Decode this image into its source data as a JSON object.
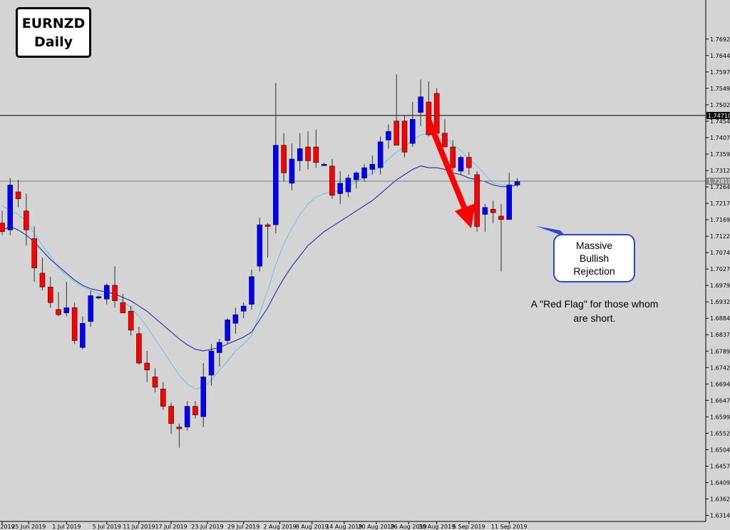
{
  "title_box": {
    "line1": "EURNZD",
    "line2": "Daily"
  },
  "callout": {
    "line1": "Massive",
    "line2": "Bullish",
    "line3": "Rejection"
  },
  "note": {
    "line1": "A \"Red Flag\" for those whom",
    "line2": "are short."
  },
  "colors": {
    "background": "#d4d4d4",
    "bull": "#0000ff",
    "bear": "#ff0000",
    "ma_fast": "#63c6e6",
    "ma_slow": "#1a1aa8",
    "arrow": "#ff0000",
    "callout_border": "#2a47d8"
  },
  "chart_data": {
    "type": "candlestick",
    "symbol": "EURNZD",
    "timeframe": "Daily",
    "ylim": [
      1.6297,
      1.7805
    ],
    "y_ticks": [
      "1.76920",
      "1.76445",
      "1.75970",
      "1.75495",
      "1.75020",
      "1.74545",
      "1.74070",
      "1.73595",
      "1.73120",
      "1.72645",
      "1.72170",
      "1.71695",
      "1.71220",
      "1.70745",
      "1.70270",
      "1.69795",
      "1.69320",
      "1.68845",
      "1.68370",
      "1.67895",
      "1.67420",
      "1.66945",
      "1.66470",
      "1.65995",
      "1.65520",
      "1.65045",
      "1.64570",
      "1.64095",
      "1.63620",
      "1.63145"
    ],
    "x_labels": [
      "Jun 2019",
      "25 Jun 2019",
      "1 Jul 2019",
      "5 Jul 2019",
      "11 Jul 2019",
      "17 Jul 2019",
      "23 Jul 2019",
      "29 Jul 2019",
      "2 Aug 2019",
      "8 Aug 2019",
      "14 Aug 2019",
      "20 Aug 2019",
      "26 Aug 2019",
      "30 Aug 2019",
      "5 Sep 2019",
      "11 Sep 2019"
    ],
    "price_labels": [
      {
        "value": 1.7471,
        "text": "1.74710"
      },
      {
        "value": 1.7281,
        "text": "1.72810"
      }
    ],
    "candles": [
      {
        "o": 1.716,
        "h": 1.7195,
        "l": 1.7125,
        "c": 1.7135
      },
      {
        "o": 1.714,
        "h": 1.729,
        "l": 1.7125,
        "c": 1.727
      },
      {
        "o": 1.725,
        "h": 1.7285,
        "l": 1.7205,
        "c": 1.723
      },
      {
        "o": 1.7195,
        "h": 1.7245,
        "l": 1.7095,
        "c": 1.714
      },
      {
        "o": 1.7115,
        "h": 1.715,
        "l": 1.699,
        "c": 1.703
      },
      {
        "o": 1.7015,
        "h": 1.706,
        "l": 1.6965,
        "c": 1.6975
      },
      {
        "o": 1.6975,
        "h": 1.7005,
        "l": 1.6915,
        "c": 1.693
      },
      {
        "o": 1.691,
        "h": 1.696,
        "l": 1.689,
        "c": 1.6895
      },
      {
        "o": 1.69,
        "h": 1.699,
        "l": 1.689,
        "c": 1.6915
      },
      {
        "o": 1.6915,
        "h": 1.693,
        "l": 1.681,
        "c": 1.682
      },
      {
        "o": 1.68,
        "h": 1.689,
        "l": 1.6795,
        "c": 1.687
      },
      {
        "o": 1.6875,
        "h": 1.6965,
        "l": 1.686,
        "c": 1.695
      },
      {
        "o": 1.6945,
        "h": 1.695,
        "l": 1.694,
        "c": 1.6947
      },
      {
        "o": 1.694,
        "h": 1.6985,
        "l": 1.6925,
        "c": 1.698
      },
      {
        "o": 1.698,
        "h": 1.7035,
        "l": 1.6915,
        "c": 1.6935
      },
      {
        "o": 1.693,
        "h": 1.6955,
        "l": 1.69,
        "c": 1.69
      },
      {
        "o": 1.6905,
        "h": 1.692,
        "l": 1.6835,
        "c": 1.685
      },
      {
        "o": 1.684,
        "h": 1.686,
        "l": 1.675,
        "c": 1.6755
      },
      {
        "o": 1.6755,
        "h": 1.679,
        "l": 1.67,
        "c": 1.6735
      },
      {
        "o": 1.6715,
        "h": 1.674,
        "l": 1.667,
        "c": 1.6685
      },
      {
        "o": 1.668,
        "h": 1.67,
        "l": 1.662,
        "c": 1.663
      },
      {
        "o": 1.663,
        "h": 1.664,
        "l": 1.655,
        "c": 1.658
      },
      {
        "o": 1.657,
        "h": 1.658,
        "l": 1.651,
        "c": 1.6565
      },
      {
        "o": 1.657,
        "h": 1.6645,
        "l": 1.656,
        "c": 1.663
      },
      {
        "o": 1.663,
        "h": 1.6645,
        "l": 1.6595,
        "c": 1.6605
      },
      {
        "o": 1.66,
        "h": 1.6755,
        "l": 1.657,
        "c": 1.6715
      },
      {
        "o": 1.672,
        "h": 1.681,
        "l": 1.669,
        "c": 1.679
      },
      {
        "o": 1.6785,
        "h": 1.6825,
        "l": 1.6745,
        "c": 1.6815
      },
      {
        "o": 1.682,
        "h": 1.6885,
        "l": 1.681,
        "c": 1.688
      },
      {
        "o": 1.687,
        "h": 1.6915,
        "l": 1.684,
        "c": 1.6895
      },
      {
        "o": 1.6905,
        "h": 1.693,
        "l": 1.6885,
        "c": 1.692
      },
      {
        "o": 1.6925,
        "h": 1.7025,
        "l": 1.691,
        "c": 1.7005
      },
      {
        "o": 1.7035,
        "h": 1.7175,
        "l": 1.702,
        "c": 1.7155
      },
      {
        "o": 1.7155,
        "h": 1.716,
        "l": 1.706,
        "c": 1.715
      },
      {
        "o": 1.7155,
        "h": 1.7565,
        "l": 1.713,
        "c": 1.7385
      },
      {
        "o": 1.7385,
        "h": 1.742,
        "l": 1.728,
        "c": 1.7305
      },
      {
        "o": 1.7275,
        "h": 1.739,
        "l": 1.7255,
        "c": 1.7345
      },
      {
        "o": 1.734,
        "h": 1.742,
        "l": 1.731,
        "c": 1.7375
      },
      {
        "o": 1.738,
        "h": 1.7425,
        "l": 1.7315,
        "c": 1.734
      },
      {
        "o": 1.738,
        "h": 1.743,
        "l": 1.732,
        "c": 1.7335
      },
      {
        "o": 1.733,
        "h": 1.7335,
        "l": 1.7325,
        "c": 1.733
      },
      {
        "o": 1.7325,
        "h": 1.7345,
        "l": 1.723,
        "c": 1.724
      },
      {
        "o": 1.7245,
        "h": 1.731,
        "l": 1.7215,
        "c": 1.7275
      },
      {
        "o": 1.725,
        "h": 1.73,
        "l": 1.7235,
        "c": 1.729
      },
      {
        "o": 1.7285,
        "h": 1.731,
        "l": 1.726,
        "c": 1.7305
      },
      {
        "o": 1.729,
        "h": 1.733,
        "l": 1.728,
        "c": 1.732
      },
      {
        "o": 1.7315,
        "h": 1.7355,
        "l": 1.73,
        "c": 1.733
      },
      {
        "o": 1.732,
        "h": 1.741,
        "l": 1.73,
        "c": 1.7395
      },
      {
        "o": 1.74,
        "h": 1.7445,
        "l": 1.7375,
        "c": 1.7425
      },
      {
        "o": 1.7455,
        "h": 1.759,
        "l": 1.7395,
        "c": 1.7385
      },
      {
        "o": 1.7455,
        "h": 1.747,
        "l": 1.735,
        "c": 1.7365
      },
      {
        "o": 1.739,
        "h": 1.751,
        "l": 1.738,
        "c": 1.746
      },
      {
        "o": 1.748,
        "h": 1.7575,
        "l": 1.744,
        "c": 1.7525
      },
      {
        "o": 1.751,
        "h": 1.757,
        "l": 1.741,
        "c": 1.7415
      },
      {
        "o": 1.7535,
        "h": 1.755,
        "l": 1.7415,
        "c": 1.742
      },
      {
        "o": 1.742,
        "h": 1.746,
        "l": 1.738,
        "c": 1.738
      },
      {
        "o": 1.738,
        "h": 1.74,
        "l": 1.731,
        "c": 1.732
      },
      {
        "o": 1.731,
        "h": 1.7355,
        "l": 1.73,
        "c": 1.735
      },
      {
        "o": 1.735,
        "h": 1.7365,
        "l": 1.73,
        "c": 1.732
      },
      {
        "o": 1.73,
        "h": 1.731,
        "l": 1.7135,
        "c": 1.715
      },
      {
        "o": 1.7185,
        "h": 1.7215,
        "l": 1.7135,
        "c": 1.7205
      },
      {
        "o": 1.72,
        "h": 1.7225,
        "l": 1.716,
        "c": 1.719
      },
      {
        "o": 1.718,
        "h": 1.7215,
        "l": 1.702,
        "c": 1.717
      },
      {
        "o": 1.717,
        "h": 1.7305,
        "l": 1.717,
        "c": 1.727
      },
      {
        "o": 1.727,
        "h": 1.729,
        "l": 1.7265,
        "c": 1.728
      }
    ],
    "series": [
      {
        "name": "",
        "type": "line",
        "color": "#63c6e6",
        "values": [
          1.721,
          1.7195,
          1.7185,
          1.7165,
          1.713,
          1.7095,
          1.7065,
          1.703,
          1.701,
          1.699,
          1.6975,
          1.6965,
          1.6955,
          1.695,
          1.6945,
          1.6935,
          1.6915,
          1.689,
          1.686,
          1.6825,
          1.679,
          1.6755,
          1.672,
          1.6695,
          1.668,
          1.6685,
          1.6705,
          1.6735,
          1.676,
          1.679,
          1.681,
          1.6835,
          1.69,
          1.6965,
          1.704,
          1.71,
          1.7145,
          1.7185,
          1.7215,
          1.7235,
          1.7245,
          1.725,
          1.7255,
          1.7265,
          1.728,
          1.729,
          1.7305,
          1.7325,
          1.7345,
          1.7365,
          1.738,
          1.74,
          1.7415,
          1.742,
          1.742,
          1.741,
          1.7385,
          1.737,
          1.7345,
          1.7325,
          1.73,
          1.7275,
          1.727,
          1.727,
          1.7275
        ]
      },
      {
        "name": "",
        "type": "line",
        "color": "#1a1aa8",
        "values": [
          1.714,
          1.715,
          1.714,
          1.7125,
          1.7105,
          1.708,
          1.7055,
          1.7035,
          1.7015,
          1.6995,
          1.698,
          1.697,
          1.6965,
          1.696,
          1.6955,
          1.6945,
          1.6935,
          1.692,
          1.6905,
          1.6885,
          1.6865,
          1.6845,
          1.6825,
          1.6808,
          1.6795,
          1.679,
          1.6795,
          1.68,
          1.681,
          1.682,
          1.683,
          1.6845,
          1.688,
          1.6915,
          1.696,
          1.7,
          1.7035,
          1.7065,
          1.7095,
          1.7115,
          1.7135,
          1.715,
          1.7165,
          1.718,
          1.7195,
          1.721,
          1.7225,
          1.7245,
          1.7265,
          1.7285,
          1.73,
          1.7315,
          1.7325,
          1.732,
          1.732,
          1.7315,
          1.7305,
          1.73,
          1.729,
          1.7285,
          1.728,
          1.727,
          1.7265,
          1.7265,
          1.727
        ]
      }
    ],
    "grid": false,
    "legend": "none"
  }
}
